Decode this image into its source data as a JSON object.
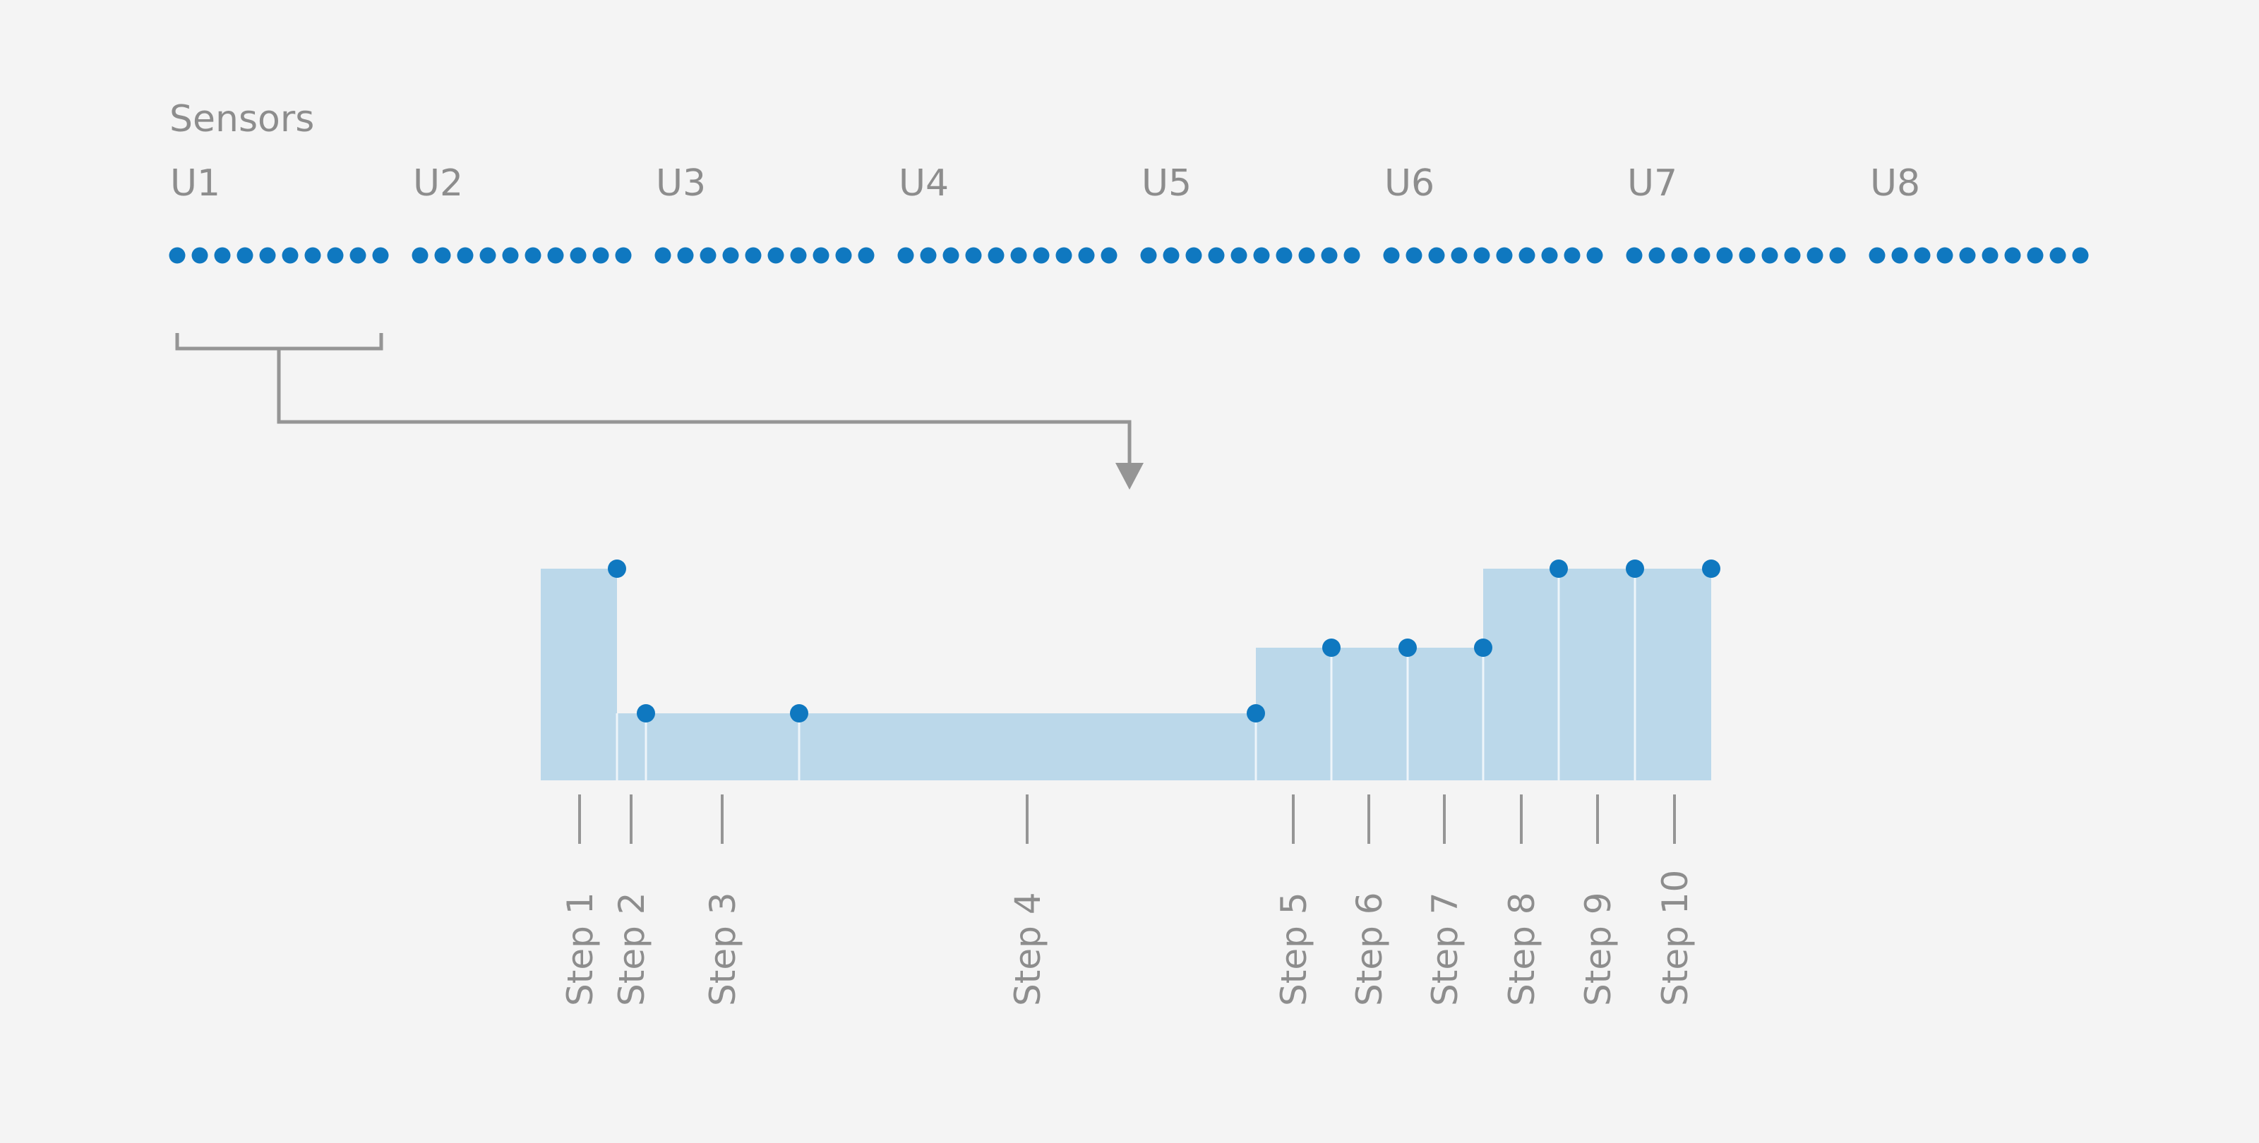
{
  "title": "Sensors",
  "sensor_groups": [
    "U1",
    "U2",
    "U3",
    "U4",
    "U5",
    "U6",
    "U7",
    "U8"
  ],
  "dots_per_group": 10,
  "colors": {
    "background": "#f4f4f4",
    "dot": "#0f78c0",
    "step_fill": "#bbd8ea",
    "step_divider": "#eef5fa",
    "connector": "#959595",
    "text": "#8d8d8d"
  },
  "steps": [
    {
      "label": "Step 1",
      "level": 3
    },
    {
      "label": "Step 2",
      "level": 1
    },
    {
      "label": "Step 3",
      "level": 1
    },
    {
      "label": "Step 4",
      "level": 1
    },
    {
      "label": "Step 5",
      "level": 2
    },
    {
      "label": "Step 6",
      "level": 2
    },
    {
      "label": "Step 7",
      "level": 2
    },
    {
      "label": "Step 8",
      "level": 3
    },
    {
      "label": "Step 9",
      "level": 3
    },
    {
      "label": "Step 10",
      "level": 3
    }
  ]
}
